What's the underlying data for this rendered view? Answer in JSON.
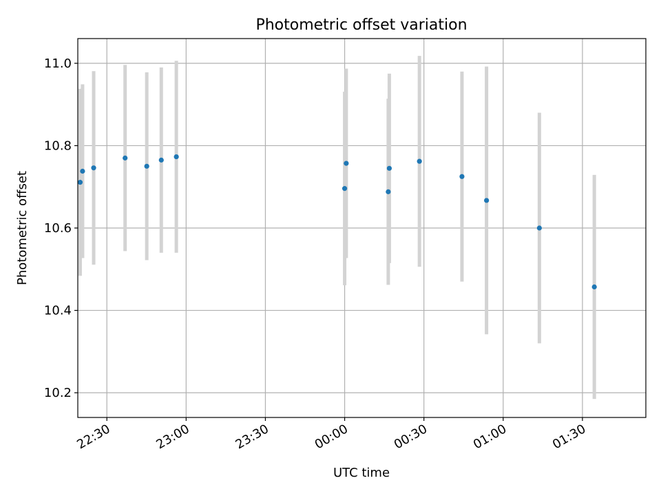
{
  "chart_data": {
    "type": "scatter",
    "title": "Photometric offset variation",
    "xlabel": "UTC time",
    "ylabel": "Photometric offset",
    "x_tick_labels": [
      "22:30",
      "23:00",
      "23:30",
      "00:00",
      "00:30",
      "01:00",
      "01:30"
    ],
    "y_tick_labels": [
      "10.2",
      "10.4",
      "10.6",
      "10.8",
      "11.0"
    ],
    "x_ticks_min": [
      -90,
      -60,
      -30,
      0,
      30,
      60,
      90
    ],
    "y_ticks": [
      10.2,
      10.4,
      10.6,
      10.8,
      11.0
    ],
    "xlim_min": [
      -101,
      114
    ],
    "ylim": [
      10.14,
      11.06
    ],
    "grid": true,
    "marker_color": "#1f77b4",
    "errorbar_color": "#d3d3d3",
    "points": [
      {
        "t_min": -100.1,
        "y": 10.711,
        "err": 0.227
      },
      {
        "t_min": -99.2,
        "y": 10.738,
        "err": 0.211
      },
      {
        "t_min": -95.0,
        "y": 10.746,
        "err": 0.235
      },
      {
        "t_min": -83.1,
        "y": 10.77,
        "err": 0.226
      },
      {
        "t_min": -74.9,
        "y": 10.75,
        "err": 0.228
      },
      {
        "t_min": -69.4,
        "y": 10.765,
        "err": 0.225
      },
      {
        "t_min": -63.7,
        "y": 10.773,
        "err": 0.233
      },
      {
        "t_min": 0.0,
        "y": 10.696,
        "err": 0.235
      },
      {
        "t_min": 0.6,
        "y": 10.757,
        "err": 0.23
      },
      {
        "t_min": 16.5,
        "y": 10.688,
        "err": 0.226
      },
      {
        "t_min": 16.9,
        "y": 10.745,
        "err": 0.23
      },
      {
        "t_min": 28.3,
        "y": 10.762,
        "err": 0.256
      },
      {
        "t_min": 44.4,
        "y": 10.725,
        "err": 0.255
      },
      {
        "t_min": 53.7,
        "y": 10.667,
        "err": 0.325
      },
      {
        "t_min": 73.7,
        "y": 10.6,
        "err": 0.28
      },
      {
        "t_min": 94.5,
        "y": 10.457,
        "err": 0.272
      }
    ]
  }
}
